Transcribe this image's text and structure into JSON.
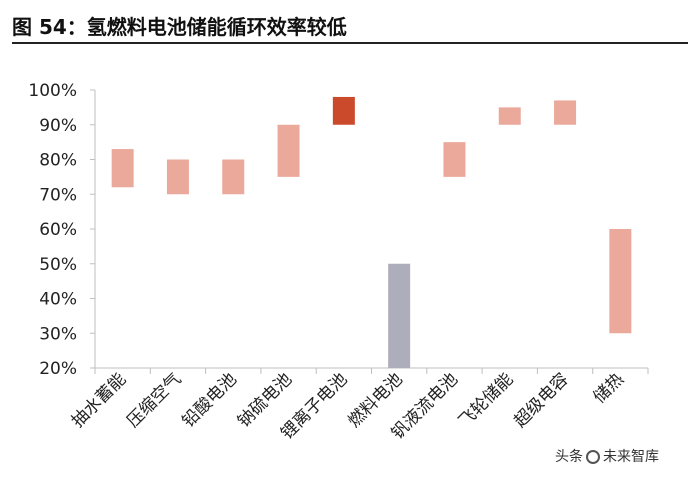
{
  "title": "图 54：氢燃料电池储能循环效率较低",
  "watermark": {
    "prefix": "头条",
    "name": "未来智库"
  },
  "chart_data": {
    "type": "bar",
    "subtype": "floating-range",
    "title": "",
    "xlabel": "",
    "ylabel": "",
    "ylim": [
      20,
      100
    ],
    "y_ticks": [
      "100%",
      "90%",
      "80%",
      "70%",
      "60%",
      "50%",
      "40%",
      "30%",
      "20%"
    ],
    "y_tick_values": [
      100,
      90,
      80,
      70,
      60,
      50,
      40,
      30,
      20
    ],
    "grid": false,
    "legend": "none",
    "categories": [
      "抽水蓄能",
      "压缩空气",
      "铅酸电池",
      "钠硫电池",
      "锂离子电池",
      "燃料电池",
      "钒液流电池",
      "飞轮储能",
      "超级电容",
      "储热"
    ],
    "ranges": [
      [
        72,
        83
      ],
      [
        70,
        80
      ],
      [
        70,
        80
      ],
      [
        75,
        90
      ],
      [
        90,
        98
      ],
      [
        20,
        50
      ],
      [
        75,
        85
      ],
      [
        90,
        95
      ],
      [
        90,
        97
      ],
      [
        30,
        60
      ]
    ],
    "colors": [
      "#eba99c",
      "#eba99c",
      "#eba99c",
      "#eba99c",
      "#cc4a2c",
      "#aeadbb",
      "#eba99c",
      "#eba99c",
      "#eba99c",
      "#eba99c"
    ],
    "axis_color": "#bfbfbf"
  }
}
